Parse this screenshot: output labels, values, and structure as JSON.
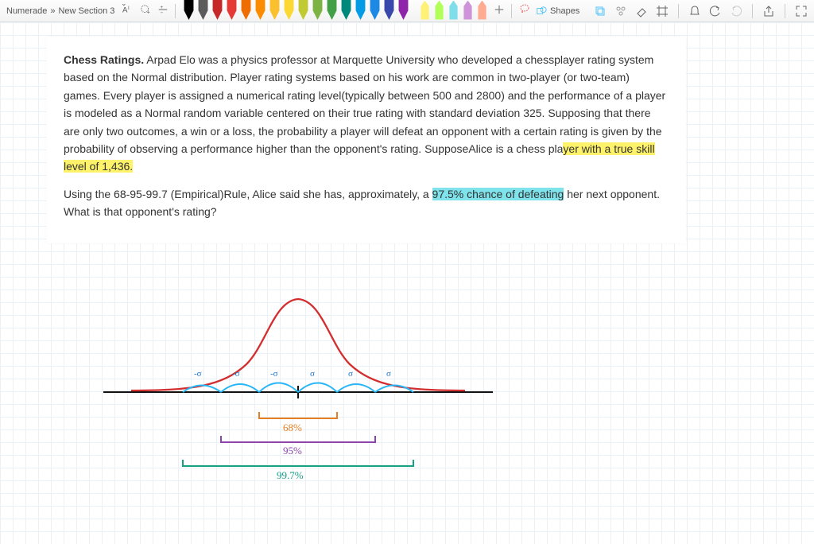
{
  "breadcrumb": {
    "app": "Numerade",
    "sep": "»",
    "section": "New Section 3"
  },
  "toolbar": {
    "shapes_label": "Shapes",
    "pen_colors": [
      "#000000",
      "#5b5b5b",
      "#c62828",
      "#e53935",
      "#ef6c00",
      "#fb8c00",
      "#fbc02d",
      "#fdd835",
      "#c0ca33",
      "#7cb342",
      "#43a047",
      "#00897b",
      "#039be5",
      "#1e88e5",
      "#3949ab",
      "#8e24aa"
    ],
    "hl_colors": [
      "#fff176",
      "#b2ff59",
      "#80deea",
      "#ce93d8",
      "#ffab91"
    ]
  },
  "problem": {
    "title": "Chess Ratings.",
    "para1_before": " Arpad Elo was a physics professor at Marquette University who developed a chessplayer rating system based on the Normal distribution. Player rating systems based on his work are common in two-player (or two-team) games. Every player is assigned a numerical rating level(typically between 500 and 2800) and the performance of a player is modeled as a Normal random variable centered on their true rating with standard deviation 325. Supposing that there are only two outcomes, a win or a loss, the probability a player will defeat an opponent with a certain rating is given by the probability of observing a performance higher than the opponent's rating. SupposeAlice is a chess pla",
    "para1_hl": "yer with a true skill level of 1,436.",
    "para2_before": "Using the 68-95-99.7 (Empirical)Rule, Alice said she has, approximately, a ",
    "para2_hl": "97.5% chance of defeating",
    "para2_after": " her next opponent. What is that opponent's rating?"
  },
  "diagram": {
    "sigma_labels": [
      "-σ",
      "-σ",
      "-σ",
      "σ",
      "σ",
      "σ"
    ],
    "rule68": "68%",
    "rule95": "95%",
    "rule997": "99.7%",
    "colors": {
      "curve": "#d32f2f",
      "arcs": "#29b6f6",
      "axis": "#111111",
      "sigma_text": "#1976d2",
      "bracket68": "#e67e22",
      "bracket95": "#8e44ad",
      "bracket997": "#16a085",
      "text68": "#e67e22",
      "text95": "#8e44ad",
      "text997": "#16a085"
    }
  }
}
